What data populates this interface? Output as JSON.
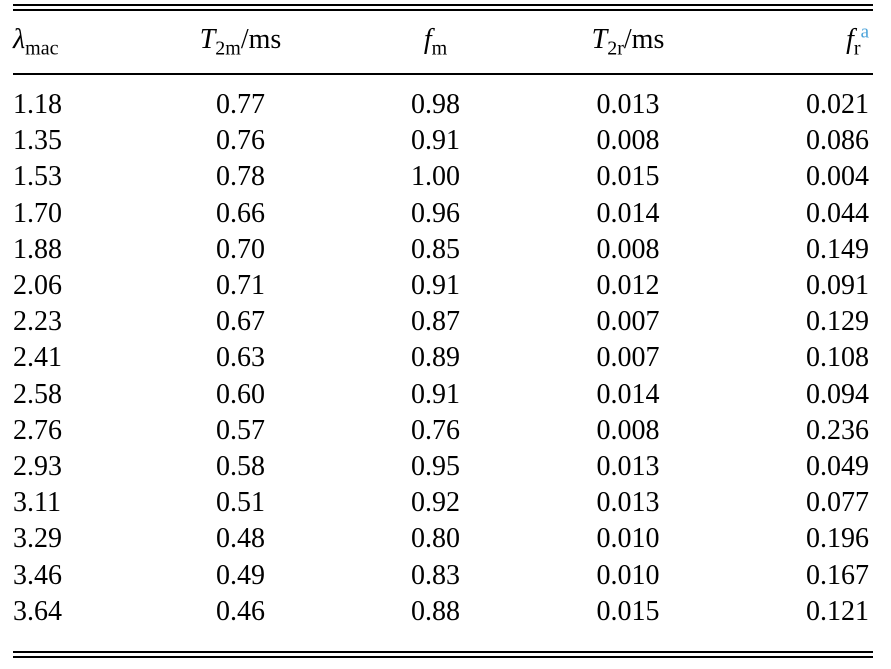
{
  "page": {
    "background_color": "#ffffff",
    "text_color": "#000000",
    "rule_color": "#000000"
  },
  "table": {
    "name": "relaxation-parameters-table",
    "footnote_marker_color": "#4aa2d9",
    "columns": [
      {
        "symbol": "λ",
        "subscript": "mac",
        "unit": "",
        "superscript": ""
      },
      {
        "symbol": "T",
        "subscript": "2m",
        "unit": "/ms",
        "superscript": ""
      },
      {
        "symbol": "f",
        "subscript": "m",
        "unit": "",
        "superscript": ""
      },
      {
        "symbol": "T",
        "subscript": "2r",
        "unit": "/ms",
        "superscript": ""
      },
      {
        "symbol": "f",
        "subscript": "r",
        "unit": "",
        "superscript": "a"
      }
    ],
    "rows": [
      [
        "1.18",
        "0.77",
        "0.98",
        "0.013",
        "0.021"
      ],
      [
        "1.35",
        "0.76",
        "0.91",
        "0.008",
        "0.086"
      ],
      [
        "1.53",
        "0.78",
        "1.00",
        "0.015",
        "0.004"
      ],
      [
        "1.70",
        "0.66",
        "0.96",
        "0.014",
        "0.044"
      ],
      [
        "1.88",
        "0.70",
        "0.85",
        "0.008",
        "0.149"
      ],
      [
        "2.06",
        "0.71",
        "0.91",
        "0.012",
        "0.091"
      ],
      [
        "2.23",
        "0.67",
        "0.87",
        "0.007",
        "0.129"
      ],
      [
        "2.41",
        "0.63",
        "0.89",
        "0.007",
        "0.108"
      ],
      [
        "2.58",
        "0.60",
        "0.91",
        "0.014",
        "0.094"
      ],
      [
        "2.76",
        "0.57",
        "0.76",
        "0.008",
        "0.236"
      ],
      [
        "2.93",
        "0.58",
        "0.95",
        "0.013",
        "0.049"
      ],
      [
        "3.11",
        "0.51",
        "0.92",
        "0.013",
        "0.077"
      ],
      [
        "3.29",
        "0.48",
        "0.80",
        "0.010",
        "0.196"
      ],
      [
        "3.46",
        "0.49",
        "0.83",
        "0.010",
        "0.167"
      ],
      [
        "3.64",
        "0.46",
        "0.88",
        "0.015",
        "0.121"
      ]
    ]
  }
}
